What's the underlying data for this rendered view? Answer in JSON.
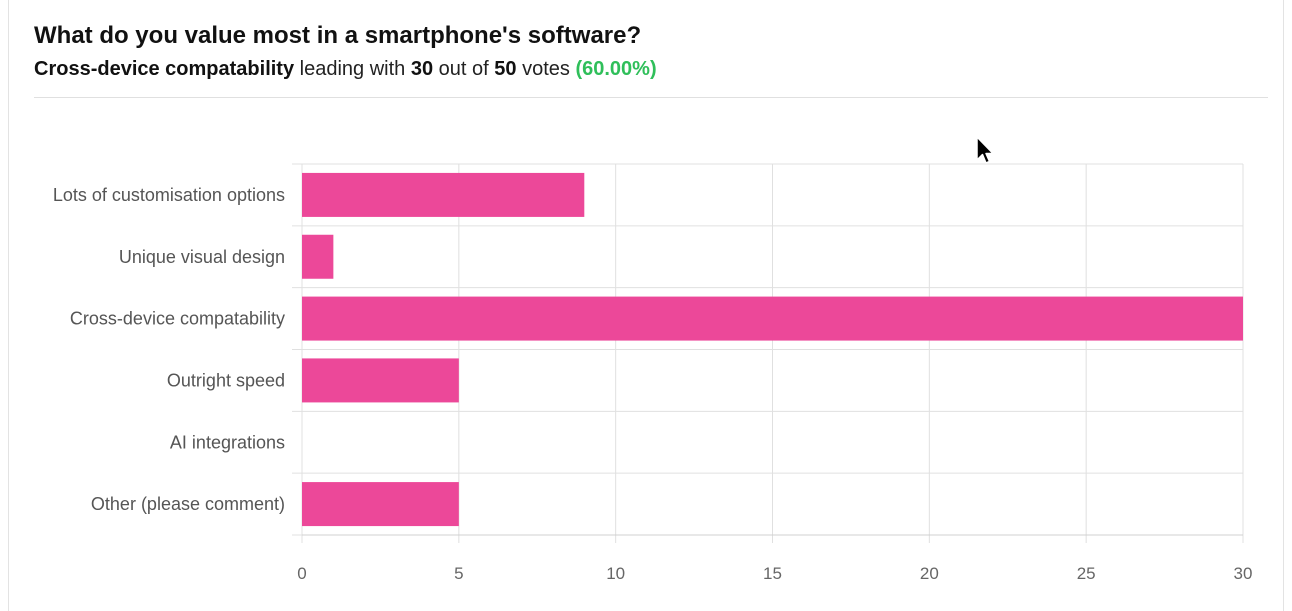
{
  "question": "What do you value most in a smartphone's software?",
  "summary": {
    "leader": "Cross-device compatability",
    "text_leading_with": "leading with",
    "leader_votes": "30",
    "text_out_of": "out of",
    "total_votes": "50",
    "text_votes": "votes",
    "percent": "(60.00%)"
  },
  "colors": {
    "bar": "#ec4899",
    "percent": "#2fbf5a",
    "grid": "#e0e0e0"
  },
  "cursor_icon": "pointer-arrow-icon",
  "chart_data": {
    "type": "bar",
    "orientation": "horizontal",
    "categories": [
      "Lots of customisation options",
      "Unique visual design",
      "Cross-device compatability",
      "Outright speed",
      "AI integrations",
      "Other (please comment)"
    ],
    "values": [
      9,
      1,
      30,
      5,
      0,
      5
    ],
    "xlim": [
      0,
      30
    ],
    "xticks": [
      0,
      5,
      10,
      15,
      20,
      25,
      30
    ],
    "grid": true,
    "title": "",
    "xlabel": "",
    "ylabel": ""
  }
}
